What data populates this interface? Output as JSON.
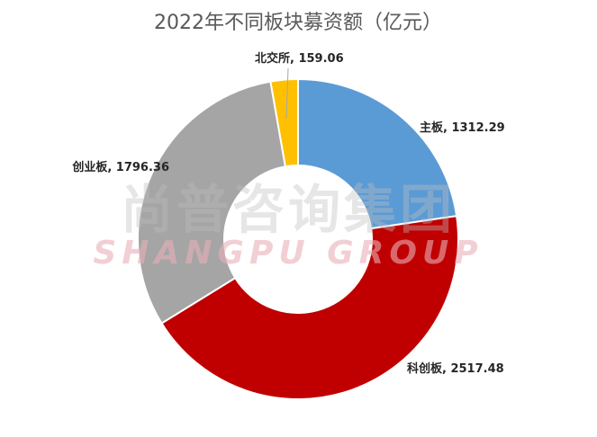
{
  "chart_data": {
    "type": "pie",
    "variant": "donut",
    "title": "2022年不同板块募资额（亿元）",
    "categories": [
      "主板",
      "科创板",
      "创业板",
      "北交所"
    ],
    "values": [
      1312.29,
      2517.48,
      1796.36,
      159.06
    ],
    "colors": [
      "#5b9bd5",
      "#c00000",
      "#a5a5a5",
      "#ffc000"
    ],
    "legend": "none"
  },
  "watermark": {
    "cn": "尚普咨询集团",
    "en": "SHANGPU GROUP"
  }
}
